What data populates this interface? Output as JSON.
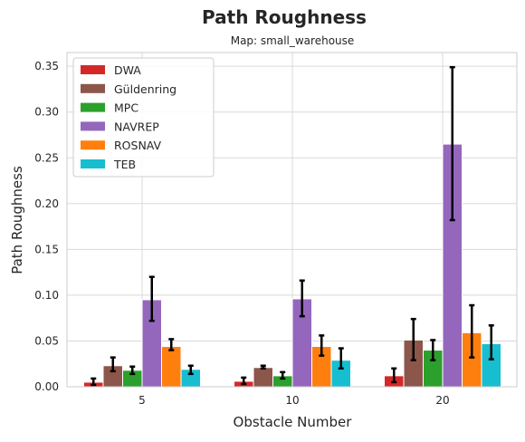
{
  "chart_data": {
    "type": "bar",
    "title": "Path Roughness",
    "subtitle": "Map: small_warehouse",
    "xlabel": "Obstacle Number",
    "ylabel": "Path Roughness",
    "categories": [
      "5",
      "10",
      "20"
    ],
    "ylim": [
      0,
      0.365
    ],
    "yticks": [
      "0.00",
      "0.05",
      "0.10",
      "0.15",
      "0.20",
      "0.25",
      "0.30",
      "0.35"
    ],
    "grid": true,
    "legend_position": "top-left",
    "series": [
      {
        "name": "DWA",
        "color": "#d62728",
        "values": [
          0.005,
          0.006,
          0.012
        ],
        "err_low": [
          0.002,
          0.003,
          0.005
        ],
        "err_high": [
          0.009,
          0.01,
          0.02
        ]
      },
      {
        "name": "Güldenring",
        "color": "#8c564b",
        "values": [
          0.023,
          0.021,
          0.051
        ],
        "err_low": [
          0.017,
          0.02,
          0.029
        ],
        "err_high": [
          0.032,
          0.023,
          0.074
        ]
      },
      {
        "name": "MPC",
        "color": "#2ca02c",
        "values": [
          0.018,
          0.012,
          0.04
        ],
        "err_low": [
          0.014,
          0.009,
          0.029
        ],
        "err_high": [
          0.022,
          0.016,
          0.051
        ]
      },
      {
        "name": "NAVREP",
        "color": "#9467bd",
        "values": [
          0.095,
          0.096,
          0.265
        ],
        "err_low": [
          0.072,
          0.077,
          0.182
        ],
        "err_high": [
          0.12,
          0.116,
          0.349
        ]
      },
      {
        "name": "ROSNAV",
        "color": "#ff7f0e",
        "values": [
          0.044,
          0.044,
          0.059
        ],
        "err_low": [
          0.04,
          0.034,
          0.032
        ],
        "err_high": [
          0.052,
          0.056,
          0.089
        ]
      },
      {
        "name": "TEB",
        "color": "#17becf",
        "values": [
          0.019,
          0.029,
          0.047
        ],
        "err_low": [
          0.014,
          0.02,
          0.03
        ],
        "err_high": [
          0.023,
          0.042,
          0.067
        ]
      }
    ]
  }
}
